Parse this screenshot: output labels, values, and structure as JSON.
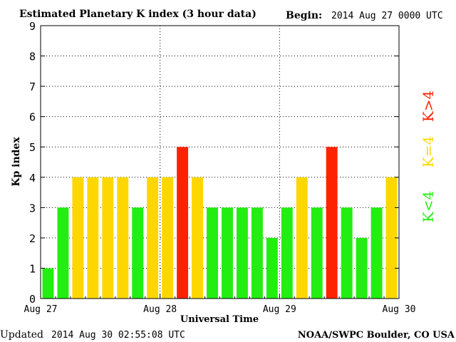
{
  "chart_data": {
    "type": "bar",
    "title": "Estimated Planetary K index (3 hour data)",
    "begin_label": "Begin:",
    "begin_value": "2014 Aug 27 0000 UTC",
    "xlabel": "Universal Time",
    "ylabel": "Kp index",
    "ylim": [
      0,
      9
    ],
    "yticks": [
      "0",
      "1",
      "2",
      "3",
      "4",
      "5",
      "6",
      "7",
      "8",
      "9"
    ],
    "xticks": [
      "Aug 27",
      "Aug 28",
      "Aug 29",
      "Aug 30"
    ],
    "values": [
      1,
      3,
      4,
      4,
      4,
      4,
      3,
      4,
      4,
      5,
      4,
      3,
      3,
      3,
      3,
      2,
      3,
      4,
      3,
      5,
      3,
      2,
      3,
      4
    ],
    "legend": {
      "low": "K<4",
      "mid": "K=4",
      "high": "K>4"
    },
    "colors": {
      "low": "#22ee11",
      "mid": "#ffd700",
      "high": "#ff2200"
    },
    "grid": true
  },
  "footer": {
    "updated_label": "Updated",
    "updated_value": "2014 Aug 30 02:55:08 UTC",
    "source": "NOAA/SWPC Boulder, CO USA"
  }
}
